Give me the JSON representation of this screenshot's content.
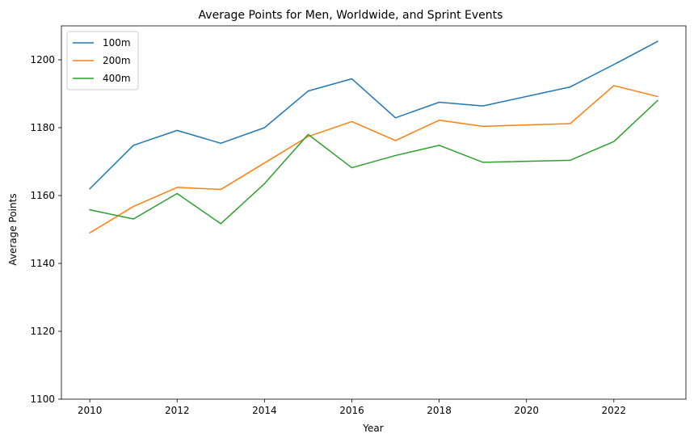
{
  "chart_data": {
    "type": "line",
    "title": "Average Points for Men, Worldwide, and Sprint Events",
    "xlabel": "Year",
    "ylabel": "Average Points",
    "xlim": [
      2009.35,
      2023.65
    ],
    "ylim": [
      1100,
      1210
    ],
    "xticks": [
      2010,
      2012,
      2014,
      2016,
      2018,
      2020,
      2022
    ],
    "yticks": [
      1100,
      1120,
      1140,
      1160,
      1180,
      1200
    ],
    "grid": false,
    "legend_position": "top-left",
    "x": [
      2010,
      2011,
      2012,
      2013,
      2014,
      2015,
      2016,
      2017,
      2018,
      2019,
      2021,
      2022,
      2023
    ],
    "series": [
      {
        "name": "100m",
        "color": "#1f77b4",
        "values": [
          1162.0,
          1174.8,
          1179.2,
          1175.4,
          1180.0,
          1190.8,
          1194.4,
          1182.9,
          1187.5,
          1186.4,
          1192.0,
          1198.6,
          1205.4
        ]
      },
      {
        "name": "200m",
        "color": "#ff7f0e",
        "values": [
          1149.0,
          1156.8,
          1162.4,
          1161.8,
          1169.6,
          1177.4,
          1181.8,
          1176.2,
          1182.2,
          1180.4,
          1181.2,
          1192.4,
          1189.2
        ]
      },
      {
        "name": "400m",
        "color": "#2ca02c",
        "values": [
          1155.8,
          1153.1,
          1160.6,
          1151.7,
          1163.5,
          1178.0,
          1168.2,
          1171.8,
          1174.8,
          1169.8,
          1170.4,
          1175.9,
          1188.0
        ]
      }
    ]
  }
}
